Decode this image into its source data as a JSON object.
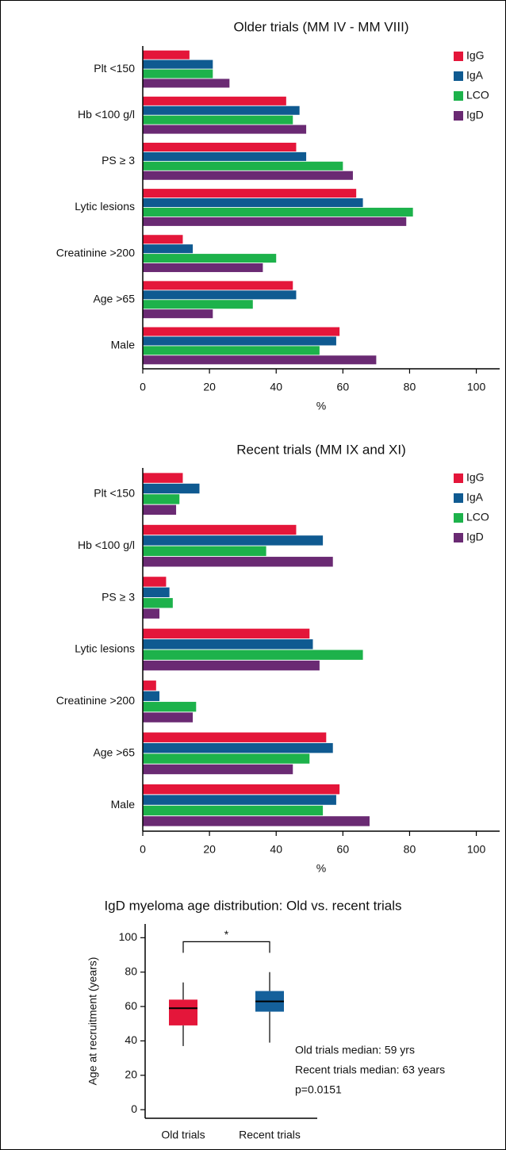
{
  "chart_data": [
    {
      "type": "barh",
      "title": "Older trials (MM IV - MM VIII)",
      "xlabel": "%",
      "categories": [
        "Plt <150",
        "Hb <100 g/l",
        "PS ≥ 3",
        "Lytic lesions",
        "Creatinine >200",
        "Age >65",
        "Male"
      ],
      "series": [
        {
          "name": "IgG",
          "color": "#e4163a",
          "values": [
            14,
            43,
            46,
            64,
            12,
            45,
            59
          ]
        },
        {
          "name": "IgA",
          "color": "#0f5a91",
          "values": [
            21,
            47,
            49,
            66,
            15,
            46,
            58
          ]
        },
        {
          "name": "LCO",
          "color": "#1db24b",
          "values": [
            21,
            45,
            60,
            81,
            40,
            33,
            53
          ]
        },
        {
          "name": "IgD",
          "color": "#6a2a73",
          "values": [
            26,
            49,
            63,
            79,
            36,
            21,
            70
          ]
        }
      ],
      "xlim": [
        0,
        107
      ],
      "xticks": [
        0,
        20,
        40,
        60,
        80,
        100
      ],
      "legend": "top-right"
    },
    {
      "type": "barh",
      "title": "Recent trials (MM IX and XI)",
      "xlabel": "%",
      "categories": [
        "Plt <150",
        "Hb <100 g/l",
        "PS ≥ 3",
        "Lytic lesions",
        "Creatinine >200",
        "Age >65",
        "Male"
      ],
      "series": [
        {
          "name": "IgG",
          "color": "#e4163a",
          "values": [
            12,
            46,
            7,
            50,
            4,
            55,
            59
          ]
        },
        {
          "name": "IgA",
          "color": "#0f5a91",
          "values": [
            17,
            54,
            8,
            51,
            5,
            57,
            58
          ]
        },
        {
          "name": "LCO",
          "color": "#1db24b",
          "values": [
            11,
            37,
            9,
            66,
            16,
            50,
            54
          ]
        },
        {
          "name": "IgD",
          "color": "#6a2a73",
          "values": [
            10,
            57,
            5,
            53,
            15,
            45,
            68
          ]
        }
      ],
      "xlim": [
        0,
        107
      ],
      "xticks": [
        0,
        20,
        40,
        60,
        80,
        100
      ],
      "legend": "top-right"
    },
    {
      "type": "box",
      "title": "IgD myeloma age distribution: Old vs. recent trials",
      "ylabel": "Age at recruitment (years)",
      "categories": [
        "Old trials",
        "Recent trials"
      ],
      "colors": [
        "#e4163a",
        "#14609b"
      ],
      "boxes": [
        {
          "min": 37,
          "q1": 49,
          "median": 59,
          "q3": 64,
          "max": 74
        },
        {
          "min": 39,
          "q1": 57,
          "median": 63,
          "q3": 69,
          "max": 80
        }
      ],
      "ylim": [
        -5,
        108
      ],
      "yticks": [
        0,
        20,
        40,
        60,
        80,
        100
      ],
      "significance": "*",
      "annotations": [
        "Old trials median: 59 yrs",
        "Recent trials median: 63 years",
        "p=0.0151"
      ]
    }
  ]
}
